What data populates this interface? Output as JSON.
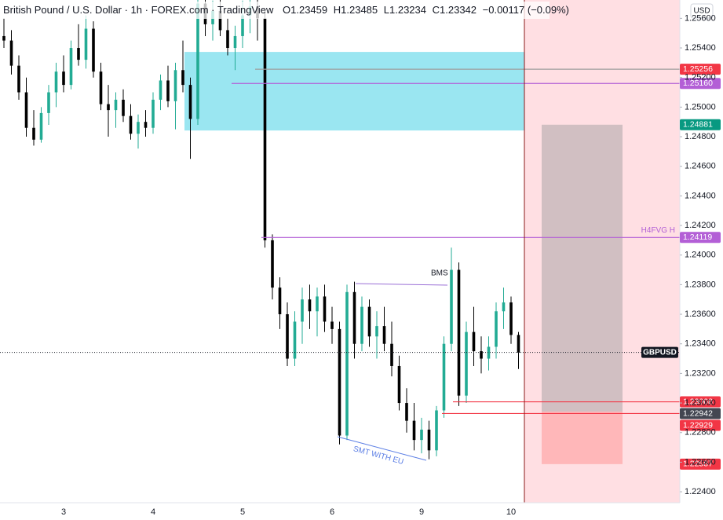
{
  "chart_data": {
    "type": "candlestick",
    "title": "British Pound / U.S. Dollar · 1h · FOREX.com · TradingView",
    "header": {
      "open": "O1.23459",
      "high": "H1.23485",
      "low": "L1.23234",
      "close": "C1.23342",
      "change": "−0.00117 (−0.09%)"
    },
    "currency": "USD",
    "symbol": "GBPUSD",
    "last_price": 1.23342,
    "up_color": "#22ab94",
    "down_color": "#000000",
    "categories": [
      null,
      null,
      null,
      null,
      null,
      null,
      null,
      null,
      "3",
      null,
      null,
      null,
      null,
      null,
      null,
      null,
      null,
      null,
      null,
      null,
      "4",
      null,
      null,
      null,
      null,
      null,
      null,
      null,
      null,
      null,
      null,
      null,
      "5",
      null,
      null,
      null,
      null,
      null,
      null,
      null,
      null,
      null,
      null,
      null,
      "6",
      null,
      null,
      null,
      null,
      null,
      null,
      null,
      null,
      null,
      null,
      null,
      "9",
      null,
      null,
      null,
      null,
      null,
      null,
      null,
      null,
      null,
      null,
      null,
      "10",
      null
    ],
    "open": [
      1.2548,
      1.2545,
      1.2528,
      1.251,
      1.2486,
      1.2478,
      1.2496,
      1.251,
      1.2524,
      1.2515,
      1.254,
      1.2532,
      1.2553,
      1.2524,
      1.2502,
      1.2498,
      1.2505,
      1.2494,
      1.2482,
      1.249,
      1.2486,
      1.2505,
      1.2518,
      1.2504,
      1.2525,
      1.2515,
      1.2492,
      1.257,
      1.2556,
      1.2565,
      1.2552,
      1.254,
      1.2548,
      1.2562,
      1.2568,
      1.256,
      1.241,
      1.2378,
      1.236,
      1.233,
      1.2355,
      1.237,
      1.2362,
      1.2372,
      1.2355,
      1.235,
      1.2278,
      1.2375,
      1.234,
      1.2365,
      1.2345,
      1.2352,
      1.234,
      1.2325,
      1.23,
      1.2288,
      1.2275,
      1.2282,
      1.2268,
      1.2295,
      1.234,
      1.239,
      1.2305,
      1.2348,
      1.2335,
      1.233,
      1.2338,
      1.2362,
      1.2368,
      1.2346
    ],
    "high": [
      1.256,
      1.2552,
      1.2535,
      1.252,
      1.2498,
      1.25,
      1.2515,
      1.253,
      1.2535,
      1.2545,
      1.2556,
      1.2562,
      1.2558,
      1.253,
      1.2515,
      1.251,
      1.2512,
      1.2502,
      1.2495,
      1.2498,
      1.251,
      1.2522,
      1.2528,
      1.253,
      1.2545,
      1.252,
      1.2575,
      1.258,
      1.2572,
      1.2574,
      1.256,
      1.2555,
      1.2572,
      1.2574,
      1.2575,
      1.2565,
      1.2414,
      1.2385,
      1.2368,
      1.2362,
      1.2378,
      1.238,
      1.2378,
      1.238,
      1.2365,
      1.2355,
      1.238,
      1.2382,
      1.2372,
      1.237,
      1.2362,
      1.2365,
      1.2355,
      1.2332,
      1.231,
      1.23,
      1.229,
      1.2288,
      1.2298,
      1.2345,
      1.2405,
      1.2395,
      1.2355,
      1.2365,
      1.2345,
      1.2345,
      1.2368,
      1.2378,
      1.2372,
      1.2348
    ],
    "low": [
      1.254,
      1.2522,
      1.2505,
      1.248,
      1.2474,
      1.2476,
      1.2488,
      1.25,
      1.251,
      1.2512,
      1.2528,
      1.2526,
      1.252,
      1.2498,
      1.248,
      1.2486,
      1.249,
      1.2478,
      1.2472,
      1.248,
      1.2482,
      1.2498,
      1.25,
      1.2485,
      1.251,
      1.2465,
      1.2488,
      1.2548,
      1.2545,
      1.2548,
      1.2535,
      1.2525,
      1.254,
      1.255,
      1.2545,
      1.2405,
      1.237,
      1.235,
      1.2325,
      1.2325,
      1.234,
      1.235,
      1.2345,
      1.2348,
      1.234,
      1.2272,
      1.2275,
      1.233,
      1.2335,
      1.2338,
      1.233,
      1.2335,
      1.2318,
      1.2295,
      1.228,
      1.2268,
      1.2266,
      1.2262,
      1.2264,
      1.229,
      1.2335,
      1.2298,
      1.23,
      1.2325,
      1.232,
      1.2322,
      1.233,
      1.235,
      1.234,
      1.2323
    ],
    "close": [
      1.2545,
      1.2528,
      1.251,
      1.2486,
      1.2478,
      1.2496,
      1.251,
      1.2524,
      1.2515,
      1.254,
      1.2532,
      1.2553,
      1.2524,
      1.2502,
      1.2498,
      1.2505,
      1.2494,
      1.2482,
      1.249,
      1.2486,
      1.2505,
      1.2518,
      1.2504,
      1.2525,
      1.2515,
      1.2492,
      1.257,
      1.2556,
      1.2565,
      1.2552,
      1.254,
      1.2548,
      1.2562,
      1.2568,
      1.256,
      1.241,
      1.2378,
      1.236,
      1.233,
      1.2355,
      1.237,
      1.2362,
      1.2372,
      1.2355,
      1.235,
      1.2278,
      1.2375,
      1.234,
      1.2365,
      1.2345,
      1.2352,
      1.234,
      1.2325,
      1.23,
      1.2288,
      1.2275,
      1.2282,
      1.2268,
      1.2295,
      1.234,
      1.239,
      1.2305,
      1.2348,
      1.2335,
      1.233,
      1.2338,
      1.2362,
      1.2368,
      1.2346,
      1.2334
    ],
    "ylim": [
      1.22326,
      1.25724
    ],
    "yticks": [
      {
        "value": 1.256,
        "label": "1.25600"
      },
      {
        "value": 1.254,
        "label": "1.25400"
      },
      {
        "value": 1.252,
        "label": "1.25200"
      },
      {
        "value": 1.25,
        "label": "1.25000"
      },
      {
        "value": 1.248,
        "label": "1.24800"
      },
      {
        "value": 1.246,
        "label": "1.24600"
      },
      {
        "value": 1.244,
        "label": "1.24400"
      },
      {
        "value": 1.242,
        "label": "1.24200"
      },
      {
        "value": 1.24,
        "label": "1.24000"
      },
      {
        "value": 1.238,
        "label": "1.23800"
      },
      {
        "value": 1.236,
        "label": "1.23600"
      },
      {
        "value": 1.234,
        "label": "1.23400"
      },
      {
        "value": 1.232,
        "label": "1.23200"
      },
      {
        "value": 1.23,
        "label": "1.23000"
      },
      {
        "value": 1.228,
        "label": "1.22800"
      },
      {
        "value": 1.226,
        "label": "1.22600"
      },
      {
        "value": 1.224,
        "label": "1.22400"
      }
    ],
    "grid": false,
    "levels": [
      {
        "value": 1.25256,
        "label": "1.25256",
        "color": "#f23645",
        "line_color": "#9e9e9e"
      },
      {
        "value": 1.2516,
        "label": "1.25160",
        "color": "#b35fd6",
        "line_color": "#b35fd6"
      },
      {
        "value": 1.24881,
        "label": "1.24881",
        "color": "#089981"
      },
      {
        "value": 1.24119,
        "label": "1.24119",
        "color": "#b35fd6",
        "line_color": "#b35fd6",
        "text": "H4FVG H"
      },
      {
        "value": 1.23008,
        "label": "1.23008",
        "color": "#f23645",
        "line_color": "#f23645"
      },
      {
        "value": 1.22942,
        "label": "1.22942",
        "color": "#434651"
      },
      {
        "value": 1.22929,
        "label": "1.22929",
        "color": "#f23645",
        "line_color": "#f23645"
      },
      {
        "value": 1.22587,
        "label": "1.22587",
        "color": "#f23645"
      }
    ],
    "zones": [
      {
        "top": 1.25373,
        "bottom": 1.24842,
        "color": "#64d8ea"
      },
      {
        "top": 1.24881,
        "bottom": 1.22942,
        "color": "#9a9a9a"
      },
      {
        "top": 1.22942,
        "bottom": 1.22587,
        "color": "#ff9d9d"
      }
    ],
    "annotations": {
      "bms": "BMS",
      "smt": "SMT WITH EU"
    }
  }
}
